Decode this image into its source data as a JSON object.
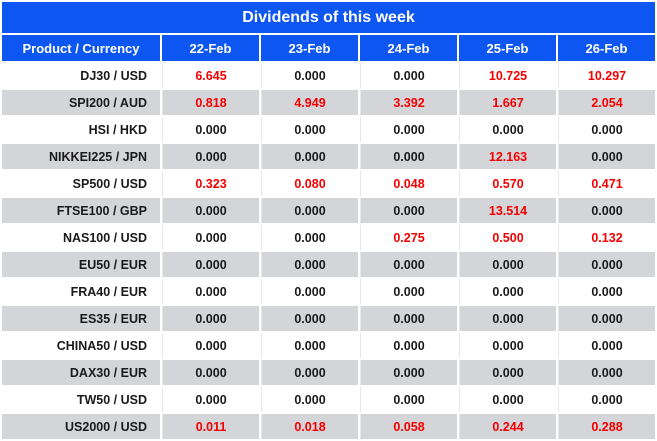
{
  "chart_data": {
    "type": "table",
    "title": "Dividends of this week",
    "columns": [
      "Product / Currency",
      "22-Feb",
      "23-Feb",
      "24-Feb",
      "25-Feb",
      "26-Feb"
    ],
    "rows": [
      {
        "product": "DJ30 / USD",
        "values": [
          "6.645",
          "0.000",
          "0.000",
          "10.725",
          "10.297"
        ]
      },
      {
        "product": "SPI200 / AUD",
        "values": [
          "0.818",
          "4.949",
          "3.392",
          "1.667",
          "2.054"
        ]
      },
      {
        "product": "HSI / HKD",
        "values": [
          "0.000",
          "0.000",
          "0.000",
          "0.000",
          "0.000"
        ]
      },
      {
        "product": "NIKKEI225 / JPN",
        "values": [
          "0.000",
          "0.000",
          "0.000",
          "12.163",
          "0.000"
        ]
      },
      {
        "product": "SP500 / USD",
        "values": [
          "0.323",
          "0.080",
          "0.048",
          "0.570",
          "0.471"
        ]
      },
      {
        "product": "FTSE100 / GBP",
        "values": [
          "0.000",
          "0.000",
          "0.000",
          "13.514",
          "0.000"
        ]
      },
      {
        "product": "NAS100 / USD",
        "values": [
          "0.000",
          "0.000",
          "0.275",
          "0.500",
          "0.132"
        ]
      },
      {
        "product": "EU50 / EUR",
        "values": [
          "0.000",
          "0.000",
          "0.000",
          "0.000",
          "0.000"
        ]
      },
      {
        "product": "FRA40 / EUR",
        "values": [
          "0.000",
          "0.000",
          "0.000",
          "0.000",
          "0.000"
        ]
      },
      {
        "product": "ES35 / EUR",
        "values": [
          "0.000",
          "0.000",
          "0.000",
          "0.000",
          "0.000"
        ]
      },
      {
        "product": "CHINA50 / USD",
        "values": [
          "0.000",
          "0.000",
          "0.000",
          "0.000",
          "0.000"
        ]
      },
      {
        "product": "DAX30 / EUR",
        "values": [
          "0.000",
          "0.000",
          "0.000",
          "0.000",
          "0.000"
        ]
      },
      {
        "product": "TW50 / USD",
        "values": [
          "0.000",
          "0.000",
          "0.000",
          "0.000",
          "0.000"
        ]
      },
      {
        "product": "US2000 / USD",
        "values": [
          "0.011",
          "0.018",
          "0.058",
          "0.244",
          "0.288"
        ]
      }
    ],
    "value_style_rule": "values greater than zero shown in red, zeros in black",
    "layout_hints": {
      "first_column_align": "right",
      "value_align": "center",
      "alternating_rows": true,
      "cell_spacing_px": 2
    }
  },
  "colors": {
    "header_blue": "#0E56F1",
    "row_alt_gray": "#D4D5D9",
    "value_red": "#F50000",
    "text_black": "#1A1A1A",
    "separator": "#E6E6E6"
  }
}
